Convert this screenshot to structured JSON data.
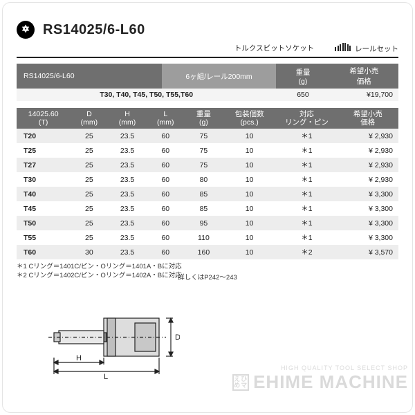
{
  "header": {
    "code": "RS14025/6-L60",
    "subtitle1": "トルクスビットソケット",
    "subtitle2": "レールセット",
    "rail_icon_heights": [
      6,
      8,
      10,
      12,
      12,
      10,
      8
    ]
  },
  "set": {
    "code": "RS14025/6-L60",
    "desc": "6ヶ組/レール200mm",
    "weight_hdr1": "重量",
    "weight_hdr2": "(g)",
    "price_hdr1": "希望小売",
    "price_hdr2": "価格",
    "contents": "T30, T40, T45, T50, T55,T60",
    "weight": "650",
    "price": "¥19,700"
  },
  "spec": {
    "columns": [
      "14025.60\n(T)",
      "D\n(mm)",
      "H\n(mm)",
      "L\n(mm)",
      "重量\n(g)",
      "包装個数\n(pcs.)",
      "対応\nリング・ピン",
      "希望小売\n価格"
    ],
    "rows": [
      {
        "code": "T20",
        "d": "25",
        "h": "23.5",
        "l": "60",
        "w": "75",
        "q": "10",
        "r": "＊1",
        "p": "¥ 2,930"
      },
      {
        "code": "T25",
        "d": "25",
        "h": "23.5",
        "l": "60",
        "w": "75",
        "q": "10",
        "r": "＊1",
        "p": "¥ 2,930"
      },
      {
        "code": "T27",
        "d": "25",
        "h": "23.5",
        "l": "60",
        "w": "75",
        "q": "10",
        "r": "＊1",
        "p": "¥ 2,930"
      },
      {
        "code": "T30",
        "d": "25",
        "h": "23.5",
        "l": "60",
        "w": "80",
        "q": "10",
        "r": "＊1",
        "p": "¥ 2,930"
      },
      {
        "code": "T40",
        "d": "25",
        "h": "23.5",
        "l": "60",
        "w": "85",
        "q": "10",
        "r": "＊1",
        "p": "¥ 3,300"
      },
      {
        "code": "T45",
        "d": "25",
        "h": "23.5",
        "l": "60",
        "w": "85",
        "q": "10",
        "r": "＊1",
        "p": "¥ 3,300"
      },
      {
        "code": "T50",
        "d": "25",
        "h": "23.5",
        "l": "60",
        "w": "95",
        "q": "10",
        "r": "＊1",
        "p": "¥ 3,300"
      },
      {
        "code": "T55",
        "d": "25",
        "h": "23.5",
        "l": "60",
        "w": "110",
        "q": "10",
        "r": "＊1",
        "p": "¥ 3,300"
      },
      {
        "code": "T60",
        "d": "30",
        "h": "23.5",
        "l": "60",
        "w": "160",
        "q": "10",
        "r": "＊2",
        "p": "¥ 3,570"
      }
    ]
  },
  "footnotes": {
    "n1": "＊1 Cリング＝1401C/ピン・Oリング＝1401A・Bに対応",
    "n2": "＊2 Cリング＝1402C/ピン・Oリング＝1402A・Bに対応",
    "detail": "詳しくはP242〜243"
  },
  "diagram": {
    "L": "L",
    "H": "H",
    "D": "D"
  },
  "watermark": {
    "small": "HIGH QUALITY TOOL SELECT SHOP",
    "big": "EHIME MACHINE",
    "logo": "え  ひ\nめ  マ"
  }
}
